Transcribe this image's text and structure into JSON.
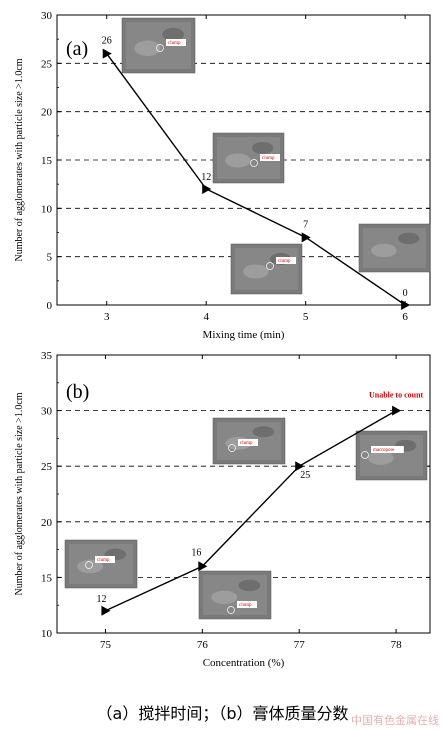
{
  "chart_data": [
    {
      "type": "line",
      "panel_label": "(a)",
      "x": [
        3,
        4,
        5,
        6
      ],
      "values": [
        26,
        12,
        7,
        0
      ],
      "point_labels": [
        "26",
        "12",
        "7",
        "0"
      ],
      "xlabel": "Mixing time (min)",
      "ylabel": "Number of agglomerates with particle size >1.0cm",
      "xlim": [
        2.5,
        6.25
      ],
      "ylim": [
        0,
        30
      ],
      "xticks": [
        3,
        4,
        5,
        6
      ],
      "yticks": [
        0,
        5,
        10,
        15,
        20,
        25,
        30
      ],
      "grid": "dashed horizontal",
      "insets": [
        "clump",
        "clump",
        "clump",
        ""
      ]
    },
    {
      "type": "line",
      "panel_label": "(b)",
      "x": [
        75,
        76,
        77,
        78
      ],
      "values": [
        12,
        16,
        25,
        30
      ],
      "point_labels": [
        "12",
        "16",
        "25",
        "Unable to count"
      ],
      "xlabel": "Concentration (%)",
      "ylabel": "Number of agglomerates with particle size >1.0cm",
      "xlim": [
        74.5,
        78.35
      ],
      "ylim": [
        10,
        35
      ],
      "xticks": [
        75,
        76,
        77,
        78
      ],
      "yticks": [
        10,
        15,
        20,
        25,
        30,
        35
      ],
      "grid": "dashed horizontal",
      "insets": [
        "clump",
        "clump",
        "clump",
        "macropore"
      ]
    }
  ],
  "caption": "（a）搅拌时间；（b）膏体质量分数",
  "watermark": "中国有色金属在线"
}
